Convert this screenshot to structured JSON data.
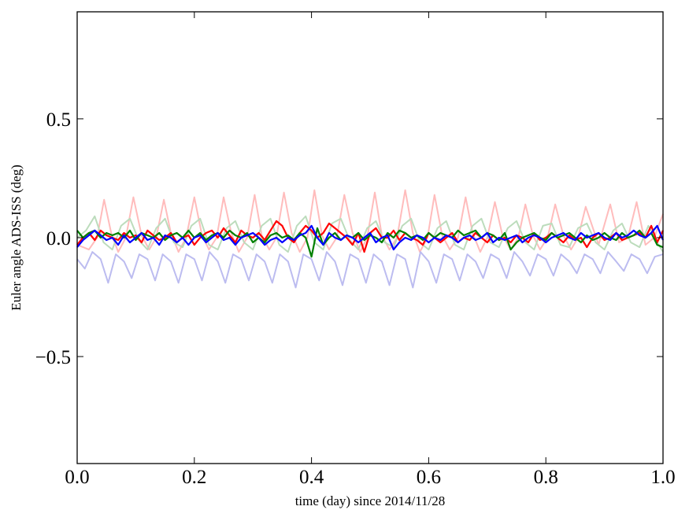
{
  "chart_data": {
    "type": "line",
    "xlabel": "time (day) since 2014/11/28",
    "ylabel": "Euler angle ADS-ISS (deg)",
    "xlim": [
      0.0,
      1.0
    ],
    "ylim": [
      -0.95,
      0.95
    ],
    "x_ticks": [
      0.0,
      0.2,
      0.4,
      0.6,
      0.8,
      1.0
    ],
    "x_tick_labels": [
      "0.0",
      "0.2",
      "0.4",
      "0.6",
      "0.8",
      "1.0"
    ],
    "y_ticks": [
      -0.5,
      0.0,
      0.5
    ],
    "y_tick_labels": [
      "−0.5",
      "0.0",
      "0.5"
    ],
    "grid": false,
    "legend": "none",
    "series": [
      {
        "color": "#ffbcbc",
        "x": [
          0.0,
          0.02,
          0.034,
          0.046,
          0.058,
          0.07,
          0.083,
          0.096,
          0.11,
          0.123,
          0.135,
          0.148,
          0.16,
          0.173,
          0.186,
          0.2,
          0.213,
          0.225,
          0.238,
          0.25,
          0.263,
          0.276,
          0.29,
          0.303,
          0.315,
          0.328,
          0.34,
          0.353,
          0.366,
          0.38,
          0.393,
          0.405,
          0.418,
          0.43,
          0.443,
          0.456,
          0.47,
          0.483,
          0.495,
          0.508,
          0.52,
          0.533,
          0.546,
          0.56,
          0.573,
          0.585,
          0.598,
          0.61,
          0.623,
          0.636,
          0.65,
          0.663,
          0.675,
          0.688,
          0.7,
          0.713,
          0.726,
          0.74,
          0.753,
          0.765,
          0.778,
          0.79,
          0.803,
          0.816,
          0.83,
          0.843,
          0.855,
          0.868,
          0.89,
          0.91,
          0.925,
          0.94,
          0.955,
          0.97,
          0.985,
          1.0
        ],
        "y": [
          -0.03,
          -0.05,
          0.0,
          0.16,
          0.02,
          -0.06,
          0.0,
          0.17,
          0.01,
          -0.05,
          0.0,
          0.16,
          0.02,
          -0.06,
          0.0,
          0.17,
          0.01,
          -0.05,
          0.0,
          0.17,
          0.02,
          -0.06,
          0.0,
          0.18,
          0.01,
          -0.05,
          0.0,
          0.19,
          0.02,
          -0.06,
          0.0,
          0.2,
          0.01,
          -0.05,
          0.0,
          0.18,
          0.02,
          -0.06,
          0.0,
          0.19,
          0.01,
          -0.05,
          0.0,
          0.2,
          0.02,
          -0.06,
          0.0,
          0.18,
          0.01,
          -0.05,
          0.0,
          0.17,
          0.02,
          -0.06,
          0.0,
          0.15,
          0.01,
          -0.05,
          0.0,
          0.14,
          0.01,
          -0.05,
          0.0,
          0.14,
          0.01,
          -0.05,
          0.0,
          0.13,
          -0.03,
          0.14,
          -0.02,
          0.0,
          0.15,
          -0.03,
          0.0,
          0.1
        ]
      },
      {
        "color": "#bcdcbc",
        "x": [
          0.0,
          0.015,
          0.03,
          0.045,
          0.06,
          0.075,
          0.09,
          0.105,
          0.12,
          0.135,
          0.15,
          0.165,
          0.18,
          0.195,
          0.21,
          0.225,
          0.24,
          0.255,
          0.27,
          0.285,
          0.3,
          0.315,
          0.33,
          0.345,
          0.36,
          0.375,
          0.39,
          0.405,
          0.42,
          0.435,
          0.45,
          0.465,
          0.48,
          0.495,
          0.51,
          0.525,
          0.54,
          0.555,
          0.57,
          0.585,
          0.6,
          0.615,
          0.63,
          0.645,
          0.66,
          0.675,
          0.69,
          0.705,
          0.72,
          0.735,
          0.75,
          0.765,
          0.78,
          0.795,
          0.81,
          0.825,
          0.84,
          0.855,
          0.87,
          0.885,
          0.9,
          0.915,
          0.93,
          0.945,
          0.96,
          0.975,
          0.99,
          1.0
        ],
        "y": [
          0.0,
          0.03,
          0.09,
          -0.02,
          -0.05,
          0.05,
          0.08,
          -0.01,
          -0.05,
          0.04,
          0.08,
          -0.02,
          -0.04,
          0.05,
          0.08,
          -0.03,
          -0.05,
          0.04,
          0.07,
          -0.02,
          -0.05,
          0.05,
          0.08,
          -0.03,
          -0.06,
          0.05,
          0.09,
          -0.02,
          -0.05,
          0.06,
          0.08,
          -0.01,
          -0.05,
          0.04,
          0.07,
          -0.02,
          -0.04,
          0.05,
          0.08,
          -0.02,
          -0.05,
          0.04,
          0.07,
          -0.03,
          -0.05,
          0.05,
          0.08,
          -0.02,
          -0.04,
          0.04,
          0.07,
          -0.02,
          -0.05,
          0.05,
          0.06,
          -0.03,
          -0.04,
          0.04,
          0.06,
          -0.02,
          -0.05,
          0.03,
          0.06,
          -0.02,
          -0.04,
          0.05,
          -0.02,
          -0.06
        ]
      },
      {
        "color": "#bcbcf0",
        "x": [
          0.0,
          0.013,
          0.026,
          0.04,
          0.053,
          0.066,
          0.08,
          0.093,
          0.106,
          0.12,
          0.133,
          0.146,
          0.16,
          0.173,
          0.186,
          0.2,
          0.213,
          0.226,
          0.24,
          0.253,
          0.266,
          0.28,
          0.293,
          0.306,
          0.32,
          0.333,
          0.346,
          0.36,
          0.373,
          0.386,
          0.4,
          0.413,
          0.426,
          0.44,
          0.453,
          0.466,
          0.48,
          0.493,
          0.506,
          0.52,
          0.533,
          0.546,
          0.56,
          0.573,
          0.586,
          0.6,
          0.613,
          0.626,
          0.64,
          0.653,
          0.666,
          0.68,
          0.693,
          0.706,
          0.72,
          0.733,
          0.746,
          0.76,
          0.773,
          0.786,
          0.8,
          0.813,
          0.826,
          0.84,
          0.853,
          0.866,
          0.88,
          0.893,
          0.906,
          0.92,
          0.933,
          0.946,
          0.96,
          0.973,
          0.986,
          1.0
        ],
        "y": [
          -0.09,
          -0.13,
          -0.06,
          -0.09,
          -0.19,
          -0.07,
          -0.1,
          -0.17,
          -0.07,
          -0.09,
          -0.18,
          -0.07,
          -0.1,
          -0.19,
          -0.07,
          -0.09,
          -0.18,
          -0.06,
          -0.1,
          -0.19,
          -0.07,
          -0.09,
          -0.18,
          -0.07,
          -0.1,
          -0.19,
          -0.07,
          -0.1,
          -0.21,
          -0.07,
          -0.09,
          -0.18,
          -0.06,
          -0.1,
          -0.2,
          -0.07,
          -0.09,
          -0.19,
          -0.07,
          -0.1,
          -0.2,
          -0.07,
          -0.09,
          -0.21,
          -0.06,
          -0.1,
          -0.19,
          -0.07,
          -0.09,
          -0.18,
          -0.07,
          -0.1,
          -0.17,
          -0.07,
          -0.09,
          -0.17,
          -0.06,
          -0.1,
          -0.16,
          -0.07,
          -0.09,
          -0.16,
          -0.07,
          -0.1,
          -0.15,
          -0.07,
          -0.09,
          -0.15,
          -0.06,
          -0.1,
          -0.14,
          -0.07,
          -0.09,
          -0.15,
          -0.08,
          -0.07
        ]
      },
      {
        "color": "#ff0000",
        "x": [
          0.0,
          0.01,
          0.02,
          0.03,
          0.04,
          0.05,
          0.06,
          0.07,
          0.08,
          0.09,
          0.1,
          0.11,
          0.12,
          0.13,
          0.14,
          0.15,
          0.16,
          0.17,
          0.18,
          0.19,
          0.2,
          0.21,
          0.22,
          0.23,
          0.24,
          0.25,
          0.26,
          0.27,
          0.28,
          0.29,
          0.3,
          0.31,
          0.32,
          0.33,
          0.34,
          0.35,
          0.36,
          0.37,
          0.38,
          0.39,
          0.4,
          0.41,
          0.42,
          0.43,
          0.44,
          0.45,
          0.46,
          0.47,
          0.48,
          0.49,
          0.5,
          0.51,
          0.52,
          0.53,
          0.54,
          0.55,
          0.56,
          0.57,
          0.58,
          0.59,
          0.6,
          0.61,
          0.62,
          0.63,
          0.64,
          0.65,
          0.66,
          0.67,
          0.68,
          0.69,
          0.7,
          0.71,
          0.72,
          0.73,
          0.74,
          0.75,
          0.76,
          0.77,
          0.78,
          0.79,
          0.8,
          0.81,
          0.82,
          0.83,
          0.84,
          0.85,
          0.86,
          0.87,
          0.88,
          0.89,
          0.9,
          0.91,
          0.92,
          0.93,
          0.94,
          0.95,
          0.96,
          0.97,
          0.98,
          0.99,
          1.0
        ],
        "y": [
          -0.03,
          0.0,
          0.02,
          -0.01,
          0.03,
          0.01,
          0.0,
          -0.01,
          0.02,
          0.0,
          0.01,
          -0.02,
          0.03,
          0.01,
          -0.01,
          0.0,
          0.02,
          -0.02,
          0.0,
          0.01,
          -0.03,
          0.0,
          0.02,
          0.03,
          0.0,
          0.04,
          0.01,
          -0.02,
          0.03,
          0.01,
          0.0,
          0.02,
          -0.01,
          0.03,
          0.07,
          0.05,
          0.0,
          -0.02,
          0.02,
          0.05,
          0.03,
          0.0,
          0.02,
          0.06,
          0.04,
          0.02,
          0.0,
          -0.03,
          0.02,
          -0.06,
          0.02,
          0.04,
          0.0,
          0.0,
          0.03,
          -0.01,
          0.02,
          0.0,
          -0.01,
          -0.03,
          0.02,
          0.0,
          -0.02,
          0.0,
          0.02,
          -0.02,
          0.0,
          -0.01,
          0.02,
          0.0,
          -0.02,
          0.01,
          -0.01,
          0.0,
          -0.02,
          0.01,
          0.0,
          -0.02,
          0.02,
          -0.01,
          0.0,
          0.02,
          0.0,
          -0.02,
          0.01,
          -0.01,
          0.0,
          -0.04,
          0.0,
          0.02,
          -0.01,
          0.0,
          0.02,
          -0.01,
          0.0,
          0.01,
          0.02,
          0.0,
          0.05,
          -0.02,
          0.03
        ]
      },
      {
        "color": "#008000",
        "x": [
          0.0,
          0.01,
          0.02,
          0.03,
          0.04,
          0.05,
          0.06,
          0.07,
          0.08,
          0.09,
          0.1,
          0.11,
          0.12,
          0.13,
          0.14,
          0.15,
          0.16,
          0.17,
          0.18,
          0.19,
          0.2,
          0.21,
          0.22,
          0.23,
          0.24,
          0.25,
          0.26,
          0.27,
          0.28,
          0.29,
          0.3,
          0.31,
          0.32,
          0.33,
          0.34,
          0.35,
          0.36,
          0.37,
          0.38,
          0.39,
          0.4,
          0.41,
          0.42,
          0.43,
          0.44,
          0.45,
          0.46,
          0.47,
          0.48,
          0.49,
          0.5,
          0.51,
          0.52,
          0.53,
          0.54,
          0.55,
          0.56,
          0.57,
          0.58,
          0.59,
          0.6,
          0.61,
          0.62,
          0.63,
          0.64,
          0.65,
          0.66,
          0.67,
          0.68,
          0.69,
          0.7,
          0.71,
          0.72,
          0.73,
          0.74,
          0.75,
          0.76,
          0.77,
          0.78,
          0.79,
          0.8,
          0.81,
          0.82,
          0.83,
          0.84,
          0.85,
          0.86,
          0.87,
          0.88,
          0.89,
          0.9,
          0.91,
          0.92,
          0.93,
          0.94,
          0.95,
          0.96,
          0.97,
          0.98,
          0.99,
          1.0
        ],
        "y": [
          0.03,
          0.0,
          0.02,
          0.03,
          0.0,
          0.02,
          0.01,
          0.02,
          0.0,
          0.03,
          -0.01,
          0.02,
          0.01,
          0.0,
          0.02,
          -0.01,
          0.01,
          0.02,
          0.0,
          0.03,
          0.0,
          0.02,
          -0.01,
          0.01,
          0.02,
          0.0,
          0.03,
          0.01,
          0.0,
          0.02,
          -0.02,
          0.0,
          -0.02,
          0.01,
          0.02,
          0.0,
          0.01,
          -0.01,
          0.02,
          0.0,
          -0.08,
          0.04,
          -0.03,
          0.0,
          0.02,
          -0.01,
          0.01,
          0.0,
          0.02,
          -0.01,
          0.01,
          0.0,
          -0.02,
          0.02,
          0.0,
          0.03,
          0.02,
          0.0,
          0.01,
          -0.01,
          0.02,
          0.0,
          0.02,
          0.01,
          0.0,
          0.03,
          0.01,
          0.02,
          0.03,
          0.0,
          0.02,
          0.01,
          -0.01,
          0.02,
          -0.05,
          -0.02,
          0.0,
          0.01,
          0.02,
          0.0,
          -0.01,
          0.02,
          0.0,
          0.01,
          0.02,
          0.0,
          -0.02,
          0.01,
          -0.01,
          0.0,
          0.02,
          0.0,
          -0.01,
          0.02,
          0.0,
          0.01,
          0.03,
          0.0,
          0.02,
          -0.03,
          -0.04
        ]
      },
      {
        "color": "#0000ff",
        "x": [
          0.0,
          0.01,
          0.02,
          0.03,
          0.04,
          0.05,
          0.06,
          0.07,
          0.08,
          0.09,
          0.1,
          0.11,
          0.12,
          0.13,
          0.14,
          0.15,
          0.16,
          0.17,
          0.18,
          0.19,
          0.2,
          0.21,
          0.22,
          0.23,
          0.24,
          0.25,
          0.26,
          0.27,
          0.28,
          0.29,
          0.3,
          0.31,
          0.32,
          0.33,
          0.34,
          0.35,
          0.36,
          0.37,
          0.38,
          0.39,
          0.4,
          0.41,
          0.42,
          0.43,
          0.44,
          0.45,
          0.46,
          0.47,
          0.48,
          0.49,
          0.5,
          0.51,
          0.52,
          0.53,
          0.54,
          0.55,
          0.56,
          0.57,
          0.58,
          0.59,
          0.6,
          0.61,
          0.62,
          0.63,
          0.64,
          0.65,
          0.66,
          0.67,
          0.68,
          0.69,
          0.7,
          0.71,
          0.72,
          0.73,
          0.74,
          0.75,
          0.76,
          0.77,
          0.78,
          0.79,
          0.8,
          0.81,
          0.82,
          0.83,
          0.84,
          0.85,
          0.86,
          0.87,
          0.88,
          0.89,
          0.9,
          0.91,
          0.92,
          0.93,
          0.94,
          0.95,
          0.96,
          0.97,
          0.98,
          0.99,
          1.0
        ],
        "y": [
          -0.04,
          -0.01,
          0.01,
          0.03,
          0.01,
          -0.01,
          0.0,
          -0.03,
          0.01,
          -0.02,
          0.0,
          0.02,
          -0.01,
          0.0,
          -0.03,
          0.01,
          0.0,
          -0.02,
          0.0,
          -0.03,
          0.0,
          0.01,
          -0.02,
          0.0,
          0.02,
          -0.01,
          0.0,
          -0.03,
          0.0,
          0.01,
          0.02,
          0.0,
          -0.03,
          -0.01,
          0.0,
          -0.02,
          0.0,
          -0.01,
          0.01,
          0.02,
          0.05,
          0.0,
          -0.03,
          0.02,
          0.0,
          -0.01,
          0.01,
          0.0,
          -0.02,
          0.0,
          0.02,
          -0.02,
          0.0,
          0.01,
          -0.05,
          -0.02,
          0.0,
          -0.01,
          0.01,
          0.0,
          -0.02,
          0.0,
          -0.01,
          0.01,
          0.0,
          -0.02,
          0.0,
          0.01,
          -0.01,
          0.0,
          0.02,
          -0.02,
          0.0,
          -0.01,
          0.0,
          0.01,
          -0.02,
          0.0,
          0.01,
          0.0,
          -0.02,
          0.0,
          0.01,
          0.02,
          0.0,
          -0.01,
          0.02,
          0.0,
          0.01,
          0.02,
          0.0,
          -0.01,
          0.02,
          0.0,
          0.01,
          0.03,
          0.01,
          0.0,
          0.02,
          0.05,
          -0.01
        ]
      }
    ]
  }
}
